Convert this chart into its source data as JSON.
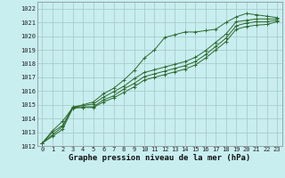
{
  "title": "Graphe pression niveau de la mer (hPa)",
  "bg_color": "#c8eef0",
  "grid_color": "#aacccc",
  "line_color": "#2d6a2d",
  "xlim": [
    -0.5,
    23.5
  ],
  "ylim": [
    1012,
    1022.5
  ],
  "xticks": [
    0,
    1,
    2,
    3,
    4,
    5,
    6,
    7,
    8,
    9,
    10,
    11,
    12,
    13,
    14,
    15,
    16,
    17,
    18,
    19,
    20,
    21,
    22,
    23
  ],
  "yticks": [
    1012,
    1013,
    1014,
    1015,
    1016,
    1017,
    1018,
    1019,
    1020,
    1021,
    1022
  ],
  "series": [
    {
      "x": [
        0,
        1,
        2,
        3,
        4,
        5,
        6,
        7,
        8,
        9,
        10,
        11,
        12,
        13,
        14,
        15,
        16,
        17,
        18,
        19,
        20,
        21,
        22,
        23
      ],
      "y": [
        1012.2,
        1013.1,
        1013.8,
        1014.8,
        1015.0,
        1015.2,
        1015.8,
        1016.2,
        1016.8,
        1017.5,
        1018.4,
        1019.0,
        1019.9,
        1020.1,
        1020.3,
        1020.3,
        1020.4,
        1020.5,
        1021.0,
        1021.4,
        1021.65,
        1021.55,
        1021.45,
        1021.35
      ]
    },
    {
      "x": [
        0,
        1,
        2,
        3,
        4,
        5,
        6,
        7,
        8,
        9,
        10,
        11,
        12,
        13,
        14,
        15,
        16,
        17,
        18,
        19,
        20,
        21,
        22,
        23
      ],
      "y": [
        1012.2,
        1013.0,
        1013.5,
        1014.85,
        1014.95,
        1015.05,
        1015.55,
        1015.95,
        1016.35,
        1016.9,
        1017.35,
        1017.55,
        1017.75,
        1017.95,
        1018.15,
        1018.45,
        1018.95,
        1019.55,
        1020.15,
        1021.05,
        1021.15,
        1021.25,
        1021.25,
        1021.25
      ]
    },
    {
      "x": [
        0,
        1,
        2,
        3,
        4,
        5,
        6,
        7,
        8,
        9,
        10,
        11,
        12,
        13,
        14,
        15,
        16,
        17,
        18,
        19,
        20,
        21,
        22,
        23
      ],
      "y": [
        1012.2,
        1012.8,
        1013.4,
        1014.8,
        1014.85,
        1014.85,
        1015.35,
        1015.65,
        1016.15,
        1016.55,
        1017.05,
        1017.25,
        1017.45,
        1017.65,
        1017.85,
        1018.15,
        1018.65,
        1019.25,
        1019.85,
        1020.75,
        1020.95,
        1021.05,
        1021.05,
        1021.15
      ]
    },
    {
      "x": [
        0,
        1,
        2,
        3,
        4,
        5,
        6,
        7,
        8,
        9,
        10,
        11,
        12,
        13,
        14,
        15,
        16,
        17,
        18,
        19,
        20,
        21,
        22,
        23
      ],
      "y": [
        1012.2,
        1012.7,
        1013.2,
        1014.75,
        1014.8,
        1014.8,
        1015.2,
        1015.5,
        1015.9,
        1016.3,
        1016.8,
        1017.0,
        1017.2,
        1017.4,
        1017.6,
        1017.9,
        1018.4,
        1019.0,
        1019.6,
        1020.5,
        1020.7,
        1020.8,
        1020.85,
        1021.05
      ]
    }
  ],
  "title_fontsize": 6.5,
  "tick_fontsize": 5.0
}
